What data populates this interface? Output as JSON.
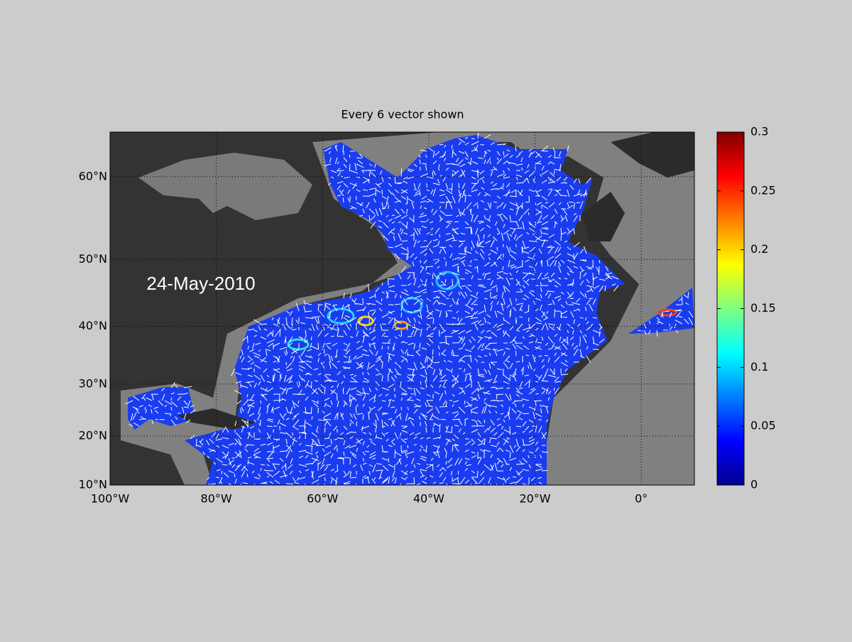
{
  "title": "Every 6 vector shown",
  "date_label": "24-May-2010",
  "map": {
    "xlim": [
      -100,
      10
    ],
    "ylim": [
      10,
      64.4
    ],
    "xticks": [
      {
        "value": -100,
        "label": "100°W"
      },
      {
        "value": -80,
        "label": "80°W"
      },
      {
        "value": -60,
        "label": "60°W"
      },
      {
        "value": -40,
        "label": "40°W"
      },
      {
        "value": -20,
        "label": "20°W"
      },
      {
        "value": 0,
        "label": "0°"
      }
    ],
    "yticks": [
      {
        "value": 10,
        "label": "10°N"
      },
      {
        "value": 20,
        "label": "20°N"
      },
      {
        "value": 30,
        "label": "30°N"
      },
      {
        "value": 40,
        "label": "40°N"
      },
      {
        "value": 50,
        "label": "50°N"
      },
      {
        "value": 60,
        "label": "60°N"
      }
    ],
    "grid": true
  },
  "colorbar": {
    "lim": [
      0,
      0.3
    ],
    "ticks": [
      0,
      0.05,
      0.1,
      0.15,
      0.2,
      0.25,
      0.3
    ]
  }
}
